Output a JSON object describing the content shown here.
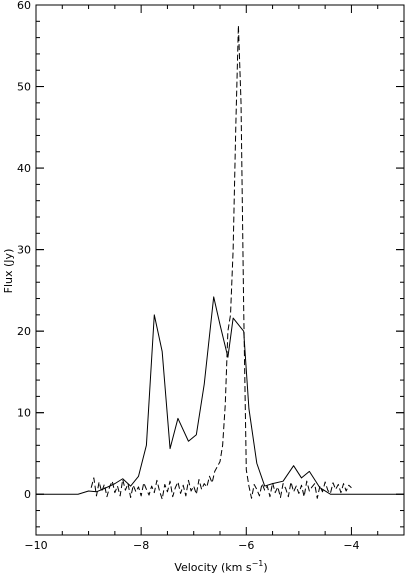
{
  "chart_data": {
    "type": "line",
    "title": "",
    "xlabel": "Velocity (km s",
    "xlabel_unit_sup": "−1",
    "xlabel_close": ")",
    "ylabel": "Flux (Jy)",
    "xlim": [
      -10,
      -3
    ],
    "ylim": [
      -5,
      60
    ],
    "x_ticks": [
      -10,
      -8,
      -6,
      -4
    ],
    "x_tick_labels": [
      "−10",
      "−8",
      "−6",
      "−4"
    ],
    "y_ticks": [
      0,
      10,
      20,
      30,
      40,
      50,
      60
    ],
    "y_tick_labels": [
      "0",
      "10",
      "20",
      "30",
      "40",
      "50",
      "60"
    ],
    "x_minor_step": 0.5,
    "y_minor_step": 2,
    "grid": false,
    "legend": "none",
    "series": [
      {
        "style": "solid",
        "color": "#000000",
        "x": [
          -10.0,
          -9.2,
          -9.0,
          -8.85,
          -8.7,
          -8.5,
          -8.35,
          -8.2,
          -8.05,
          -7.9,
          -7.75,
          -7.6,
          -7.45,
          -7.3,
          -7.1,
          -6.95,
          -6.8,
          -6.62,
          -6.5,
          -6.35,
          -6.25,
          -6.05,
          -5.95,
          -5.8,
          -5.65,
          -5.5,
          -5.3,
          -5.1,
          -4.95,
          -4.8,
          -4.6,
          -4.4,
          -4.2,
          -4.0,
          -3.0
        ],
        "y": [
          0,
          0,
          0.4,
          0.3,
          0.7,
          1.3,
          1.9,
          1.0,
          2.2,
          6.0,
          22.0,
          17.5,
          5.6,
          9.3,
          6.5,
          7.3,
          13.5,
          24.2,
          20.8,
          16.8,
          21.6,
          20.0,
          10.5,
          3.8,
          1.0,
          1.3,
          1.6,
          3.5,
          2.0,
          2.8,
          0.8,
          0,
          0,
          0,
          0
        ]
      },
      {
        "style": "dashed",
        "color": "#000000",
        "x": [
          -8.95,
          -8.9,
          -8.85,
          -8.8,
          -8.75,
          -8.7,
          -8.65,
          -8.6,
          -8.55,
          -8.5,
          -8.45,
          -8.4,
          -8.35,
          -8.3,
          -8.25,
          -8.2,
          -8.15,
          -8.1,
          -8.05,
          -8.0,
          -7.95,
          -7.9,
          -7.85,
          -7.8,
          -7.75,
          -7.7,
          -7.65,
          -7.6,
          -7.55,
          -7.5,
          -7.45,
          -7.4,
          -7.35,
          -7.3,
          -7.25,
          -7.2,
          -7.15,
          -7.1,
          -7.05,
          -7.0,
          -6.95,
          -6.9,
          -6.85,
          -6.8,
          -6.75,
          -6.7,
          -6.65,
          -6.6,
          -6.55,
          -6.5,
          -6.45,
          -6.4,
          -6.35,
          -6.3,
          -6.25,
          -6.2,
          -6.15,
          -6.1,
          -6.05,
          -6.0,
          -5.95,
          -5.9,
          -5.85,
          -5.8,
          -5.75,
          -5.7,
          -5.65,
          -5.6,
          -5.55,
          -5.5,
          -5.45,
          -5.4,
          -5.35,
          -5.3,
          -5.25,
          -5.2,
          -5.15,
          -5.1,
          -5.05,
          -5.0,
          -4.95,
          -4.9,
          -4.85,
          -4.8,
          -4.75,
          -4.7,
          -4.65,
          -4.6,
          -4.55,
          -4.5,
          -4.45,
          -4.4,
          -4.35,
          -4.3,
          -4.25,
          -4.2,
          -4.15,
          -4.1,
          -4.05,
          -4.0
        ],
        "y": [
          0.8,
          2.0,
          -0.2,
          1.5,
          0.3,
          1.2,
          -0.3,
          0.9,
          1.6,
          0.2,
          1.0,
          -0.2,
          1.8,
          0.5,
          1.3,
          -0.4,
          1.1,
          0.3,
          0.9,
          -0.2,
          1.4,
          0.6,
          -0.1,
          1.0,
          0.2,
          1.7,
          0.4,
          -0.6,
          1.2,
          0.3,
          1.6,
          -0.3,
          0.8,
          1.5,
          0.1,
          1.1,
          -0.2,
          1.7,
          0.4,
          1.0,
          0.0,
          1.8,
          0.6,
          1.3,
          0.9,
          2.2,
          1.4,
          2.8,
          3.4,
          4.0,
          6.0,
          11.0,
          20.0,
          22.0,
          30.0,
          45.0,
          57.5,
          48.0,
          23.0,
          3.0,
          1.0,
          -0.5,
          1.2,
          0.6,
          -0.2,
          1.3,
          0.5,
          1.0,
          -0.3,
          1.4,
          0.2,
          0.9,
          -0.4,
          1.3,
          0.7,
          -0.3,
          1.5,
          0.3,
          1.0,
          0.1,
          1.1,
          -0.3,
          1.6,
          0.4,
          0.9,
          1.3,
          -0.5,
          1.0,
          0.3,
          1.5,
          0.5,
          0.1,
          1.4,
          0.6,
          1.2,
          0.2,
          1.3,
          0.4,
          1.1,
          0.8
        ]
      }
    ]
  }
}
